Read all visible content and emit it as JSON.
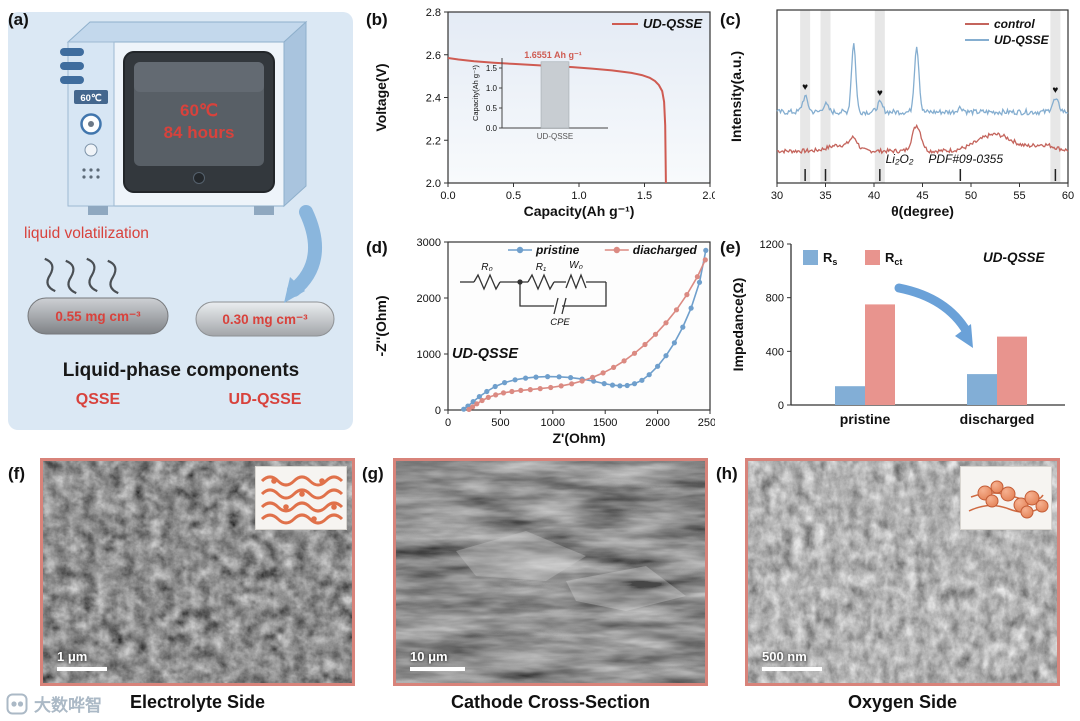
{
  "figure": {
    "watermark_text": "大数哗智"
  },
  "panel_a": {
    "label": "(a)",
    "oven_side_label": "60℃",
    "door_line1": "60℃",
    "door_line2": "84 hours",
    "process_text": "liquid volatilization",
    "sample_left_value": "0.55 mg cm⁻³",
    "sample_right_value": "0.30 mg cm⁻³",
    "caption": "Liquid-phase components",
    "name_left": "QSSE",
    "name_right": "UD-QSSE"
  },
  "panel_b": {
    "label": "(b)"
  },
  "panel_c": {
    "label": "(c)"
  },
  "panel_d": {
    "label": "(d)"
  },
  "panel_e": {
    "label": "(e)"
  },
  "panel_f": {
    "label": "(f)",
    "scale_bar": "1 μm",
    "caption": "Electrolyte Side"
  },
  "panel_g": {
    "label": "(g)",
    "scale_bar": "10 μm",
    "caption": "Cathode Cross-Section"
  },
  "panel_h": {
    "label": "(h)",
    "scale_bar": "500 nm",
    "caption": "Oxygen Side"
  },
  "chart_data": [
    {
      "id": "b",
      "type": "line",
      "title": "Discharge curve",
      "xlabel": "Capacity(Ah g⁻¹)",
      "ylabel": "Voltage(V)",
      "xlim": [
        0,
        2.0
      ],
      "ylim": [
        2.0,
        2.8
      ],
      "xticks": [
        "0.0",
        "0.5",
        "1.0",
        "1.5",
        "2.0"
      ],
      "yticks": [
        "2.0",
        "2.2",
        "2.4",
        "2.6",
        "2.8"
      ],
      "legend_position": "top-right",
      "series": [
        {
          "name": "UD-QSSE",
          "color": "#cf5b52",
          "x": [
            0,
            0.08,
            0.2,
            0.35,
            0.5,
            0.65,
            0.8,
            0.95,
            1.1,
            1.25,
            1.4,
            1.48,
            1.54,
            1.58,
            1.61,
            1.635,
            1.65,
            1.658,
            1.663
          ],
          "y": [
            2.585,
            2.578,
            2.57,
            2.563,
            2.557,
            2.552,
            2.547,
            2.542,
            2.535,
            2.527,
            2.515,
            2.505,
            2.492,
            2.477,
            2.458,
            2.43,
            2.38,
            2.27,
            2.0
          ]
        }
      ],
      "inset": {
        "type": "bar",
        "ylabel": "Capacity(Ah g⁻¹)",
        "yticks": [
          "0.0",
          "0.5",
          "1.0",
          "1.5"
        ],
        "ylim": [
          0,
          1.75
        ],
        "categories": [
          "UD-QSSE"
        ],
        "values": [
          1.6551
        ],
        "bar_color": "#c8cdd2",
        "annotation": "1.6551 Ah g⁻¹",
        "annotation_color": "#cf5b52"
      }
    },
    {
      "id": "c",
      "type": "line",
      "title": "XRD patterns",
      "xlabel": "θ(degree)",
      "ylabel": "Intensity(a.u.)",
      "xlim": [
        30,
        60
      ],
      "xticks": [
        "30",
        "35",
        "40",
        "45",
        "50",
        "55",
        "60"
      ],
      "legend": [
        {
          "label": "control",
          "color": "#c4645c"
        },
        {
          "label": "UD-QSSE",
          "color": "#85aed0"
        }
      ],
      "highlight_bands": [
        32.9,
        35.0,
        40.6,
        58.7
      ],
      "peak_markers": [
        32.9,
        40.6,
        58.7
      ],
      "reference_label_1": "Li₂O₂",
      "reference_label_2": "PDF#09-0355",
      "reference_ticks": [
        32.9,
        35.0,
        40.6,
        48.9,
        58.7
      ],
      "series": [
        {
          "name": "control",
          "color": "#c4645c",
          "baseline": 0.2,
          "noise": 0.014,
          "peaks": [
            [
              37.9,
              0.07,
              0.4
            ],
            [
              44.4,
              0.17,
              0.45
            ],
            [
              52.5,
              0.11,
              1.8
            ],
            [
              57.5,
              0.04,
              1.2
            ],
            [
              36.5,
              0.04,
              1.2
            ]
          ]
        },
        {
          "name": "UD-QSSE",
          "color": "#85aed0",
          "baseline": 0.46,
          "noise": 0.018,
          "peaks": [
            [
              32.9,
              0.1,
              0.28
            ],
            [
              35.0,
              0.05,
              0.28
            ],
            [
              37.9,
              0.46,
              0.22
            ],
            [
              40.6,
              0.06,
              0.28
            ],
            [
              44.4,
              0.44,
              0.24
            ],
            [
              48.9,
              0.03,
              0.3
            ],
            [
              58.7,
              0.08,
              0.35
            ]
          ]
        }
      ]
    },
    {
      "id": "d",
      "type": "scatter-line",
      "title": "Nyquist plot",
      "xlabel": "Z'(Ohm)",
      "ylabel": "-Z''(Ohm)",
      "xlim": [
        0,
        2500
      ],
      "ylim": [
        0,
        3000
      ],
      "xticks": [
        "0",
        "500",
        "1000",
        "1500",
        "2000",
        "2500"
      ],
      "yticks": [
        "0",
        "1000",
        "2000",
        "3000"
      ],
      "annotation": "UD-QSSE",
      "circuit": {
        "r0": "R₀",
        "r1": "R₁",
        "w": "W₀",
        "cpe": "CPE"
      },
      "series": [
        {
          "name": "pristine",
          "color": "#6f9fcc",
          "x": [
            150,
            190,
            240,
            300,
            370,
            450,
            540,
            640,
            740,
            840,
            950,
            1060,
            1170,
            1280,
            1390,
            1490,
            1570,
            1640,
            1710,
            1780,
            1850,
            1920,
            2000,
            2080,
            2160,
            2240,
            2320,
            2400,
            2460
          ],
          "y": [
            15,
            70,
            150,
            240,
            330,
            420,
            490,
            540,
            570,
            588,
            596,
            592,
            578,
            552,
            515,
            472,
            445,
            432,
            438,
            470,
            530,
            630,
            780,
            970,
            1200,
            1480,
            1820,
            2280,
            2850
          ]
        },
        {
          "name": "diacharged",
          "color": "#db8a82",
          "x": [
            200,
            235,
            275,
            325,
            385,
            455,
            530,
            610,
            695,
            785,
            880,
            980,
            1080,
            1180,
            1280,
            1380,
            1480,
            1580,
            1680,
            1780,
            1880,
            1980,
            2080,
            2180,
            2280,
            2380,
            2455
          ],
          "y": [
            10,
            55,
            110,
            170,
            225,
            270,
            305,
            330,
            350,
            365,
            382,
            402,
            430,
            468,
            518,
            582,
            662,
            760,
            876,
            1012,
            1170,
            1352,
            1558,
            1790,
            2060,
            2380,
            2680
          ]
        }
      ]
    },
    {
      "id": "e",
      "type": "bar",
      "title": "Impedance comparison",
      "ylabel": "Impedance(Ω)",
      "ylim": [
        0,
        1200
      ],
      "yticks": [
        "0",
        "400",
        "800",
        "1200"
      ],
      "categories": [
        "pristine",
        "discharged"
      ],
      "annotation": "UD-QSSE",
      "series": [
        {
          "name_main": "R",
          "name_sub": "s",
          "color": "#82aed6",
          "values": [
            140,
            230
          ]
        },
        {
          "name_main": "R",
          "name_sub": "ct",
          "color": "#e8948e",
          "values": [
            750,
            510
          ]
        }
      ]
    }
  ]
}
